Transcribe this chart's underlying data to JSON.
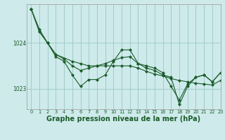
{
  "bg_color": "#ceeaea",
  "grid_color": "#a0cccc",
  "line_color": "#1a5c2a",
  "marker_color": "#1a5c2a",
  "title": "Graphe pression niveau de la mer (hPa)",
  "title_fontsize": 7.0,
  "title_color": "#1a5c2a",
  "xlim": [
    -0.5,
    23
  ],
  "ylim": [
    1022.55,
    1024.85
  ],
  "yticks": [
    1023,
    1024
  ],
  "xticks": [
    0,
    1,
    2,
    3,
    4,
    5,
    6,
    7,
    8,
    9,
    10,
    11,
    12,
    13,
    14,
    15,
    16,
    17,
    18,
    19,
    20,
    21,
    22,
    23
  ],
  "series1_x": [
    0,
    1,
    2,
    3,
    4,
    5,
    6,
    7,
    8,
    9,
    10,
    11,
    12,
    13,
    14,
    15,
    16,
    17,
    18,
    19,
    20,
    21,
    22,
    23
  ],
  "series1_y": [
    1024.75,
    1024.3,
    1024.0,
    1023.7,
    1023.6,
    1023.3,
    1023.05,
    1023.2,
    1023.2,
    1023.3,
    1023.6,
    1023.85,
    1023.85,
    1023.55,
    1023.45,
    1023.4,
    1023.3,
    1023.25,
    1022.65,
    1023.05,
    1023.25,
    1023.3,
    1023.15,
    1023.35
  ],
  "series2_x": [
    0,
    1,
    2,
    3,
    5,
    6,
    7,
    8,
    9,
    10,
    11,
    12,
    13,
    14,
    15,
    16,
    17,
    18,
    19,
    20,
    21,
    22,
    23
  ],
  "series2_y": [
    1024.75,
    1024.25,
    1024.0,
    1023.75,
    1023.6,
    1023.55,
    1023.5,
    1023.5,
    1023.5,
    1023.5,
    1023.5,
    1023.5,
    1023.45,
    1023.38,
    1023.32,
    1023.28,
    1023.22,
    1023.18,
    1023.15,
    1023.12,
    1023.1,
    1023.08,
    1023.18
  ],
  "series3_x": [
    0,
    1,
    2,
    3,
    4,
    5,
    6,
    7,
    8,
    9,
    10,
    11,
    12,
    13,
    14,
    15,
    16,
    17,
    18,
    19,
    20,
    21,
    22,
    23
  ],
  "series3_y": [
    1024.75,
    1024.25,
    1024.0,
    1023.75,
    1023.65,
    1023.5,
    1023.4,
    1023.45,
    1023.5,
    1023.55,
    1023.62,
    1023.68,
    1023.7,
    1023.55,
    1023.5,
    1023.45,
    1023.35,
    1023.05,
    1022.75,
    1023.1,
    1023.25,
    1023.3,
    1023.15,
    1023.35
  ]
}
